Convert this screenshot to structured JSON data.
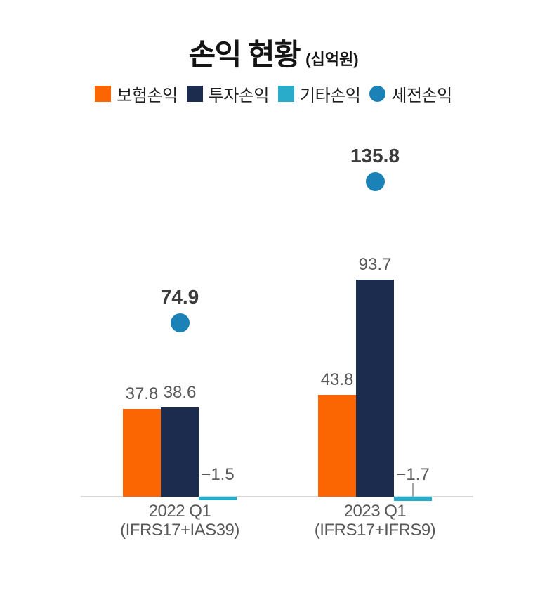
{
  "title": {
    "text": "손익 현황",
    "unit": "(십억원)"
  },
  "legend": [
    {
      "label": "보험손익",
      "color": "#fb6502",
      "marker": "square"
    },
    {
      "label": "투자손익",
      "color": "#1c2c4e",
      "marker": "square"
    },
    {
      "label": "기타손익",
      "color": "#29abca",
      "marker": "square"
    },
    {
      "label": "세전손익",
      "color": "#1b82b8",
      "marker": "circle"
    }
  ],
  "chart_data": {
    "type": "bar",
    "title": "손익 현황",
    "unit": "십억원",
    "grid": false,
    "legend_position": "top",
    "ylim": [
      -5,
      145
    ],
    "categories": [
      {
        "line1": "2022 Q1",
        "line2": "(IFRS17+IAS39)"
      },
      {
        "line1": "2023 Q1",
        "line2": "(IFRS17+IFRS9)"
      }
    ],
    "series": [
      {
        "name": "보험손익",
        "render": "bar",
        "color": "#fb6502",
        "values": [
          37.8,
          43.8
        ],
        "labels": [
          "37.8",
          "43.8"
        ]
      },
      {
        "name": "투자손익",
        "render": "bar",
        "color": "#1c2c4e",
        "values": [
          38.6,
          93.7
        ],
        "labels": [
          "38.6",
          "93.7"
        ]
      },
      {
        "name": "기타손익",
        "render": "bar",
        "color": "#29abca",
        "values": [
          -1.5,
          -1.7
        ],
        "labels": [
          "−1.5",
          "−1.7"
        ],
        "label_leader": [
          false,
          true
        ]
      },
      {
        "name": "세전손익",
        "render": "point",
        "color": "#1b82b8",
        "values": [
          74.9,
          135.8
        ],
        "labels": [
          "74.9",
          "135.8"
        ]
      }
    ]
  }
}
